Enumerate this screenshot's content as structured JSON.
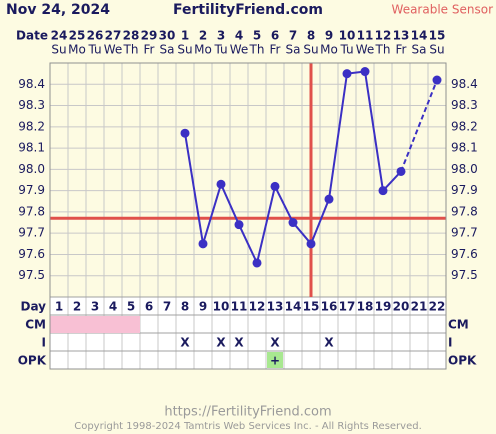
{
  "header": {
    "date": "Nov 24, 2024",
    "site": "FertilityFriend.com",
    "mode": "Wearable Sensor"
  },
  "chart_data": {
    "type": "line",
    "date_label": "Date",
    "dates": [
      "24",
      "25",
      "26",
      "27",
      "28",
      "29",
      "30",
      "1",
      "2",
      "3",
      "4",
      "5",
      "6",
      "7",
      "8",
      "9",
      "10",
      "11",
      "12",
      "13",
      "14",
      "15"
    ],
    "weekdays": [
      "Su",
      "Mo",
      "Tu",
      "We",
      "Th",
      "Fr",
      "Sa",
      "Su",
      "Mo",
      "Tu",
      "We",
      "Th",
      "Fr",
      "Sa",
      "Su",
      "Mo",
      "Tu",
      "We",
      "Th",
      "Fr",
      "Sa",
      "Su"
    ],
    "x": [
      1,
      2,
      3,
      4,
      5,
      6,
      7,
      8,
      9,
      10,
      11,
      12,
      13,
      14,
      15,
      16,
      17,
      18,
      19,
      20,
      21,
      22
    ],
    "values": [
      null,
      null,
      null,
      null,
      null,
      null,
      null,
      98.17,
      97.65,
      97.93,
      97.74,
      97.56,
      97.92,
      97.75,
      97.65,
      97.86,
      98.45,
      98.46,
      97.9,
      97.99,
      null,
      98.42
    ],
    "color": "#3b30c4",
    "ylim": [
      97.4,
      98.5
    ],
    "yticks": [
      97.5,
      97.6,
      97.7,
      97.8,
      97.9,
      {
        "value": 98.0,
        "label": "98.0"
      },
      98.1,
      98.2,
      98.3,
      98.4
    ],
    "grid": true,
    "coverline": 97.77,
    "ovulation_day": 15,
    "marker_color": "#e0504a",
    "row_labels": [
      "Day",
      "CM",
      "I",
      "OPK"
    ],
    "cm_days": [
      1,
      2,
      3,
      4,
      5
    ],
    "cm_color": "#f8c0d4",
    "intercourse": [
      null,
      null,
      null,
      null,
      null,
      null,
      null,
      "X",
      null,
      "X",
      "X",
      null,
      "X",
      null,
      null,
      "X",
      null,
      null,
      null,
      null,
      null,
      null
    ],
    "opk": [
      null,
      null,
      null,
      null,
      null,
      null,
      null,
      null,
      null,
      null,
      null,
      null,
      "+",
      null,
      null,
      null,
      null,
      null,
      null,
      null,
      null,
      null
    ],
    "opk_color": "#a8e890"
  },
  "footer": {
    "url": "https://FertilityFriend.com",
    "copyright": "Copyright 1998-2024 Tamtris Web Services Inc. - All Rights Reserved."
  }
}
